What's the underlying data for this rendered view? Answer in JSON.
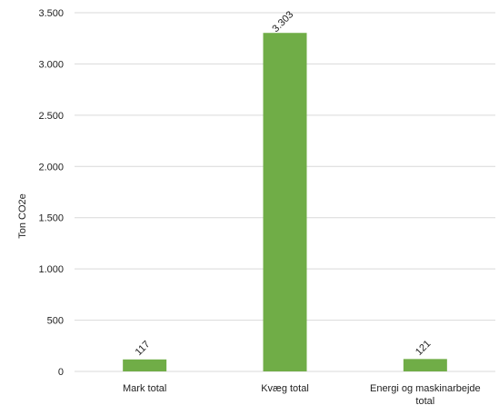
{
  "chart_data": {
    "type": "bar",
    "title": "",
    "xlabel": "",
    "ylabel": "Ton CO2e",
    "categories": [
      [
        "Mark total"
      ],
      [
        "Kvæg total"
      ],
      [
        "Energi og maskinarbejde",
        "total"
      ]
    ],
    "values": [
      117,
      3303,
      121
    ],
    "data_labels": [
      "117",
      "3.303",
      "121"
    ],
    "y_ticks": [
      0,
      500,
      1000,
      1500,
      2000,
      2500,
      3000,
      3500
    ],
    "y_tick_labels": [
      "0",
      "500",
      "1.000",
      "1.500",
      "2.000",
      "2.500",
      "3.000",
      "3.500"
    ],
    "ylim": [
      0,
      3500
    ],
    "grid": true,
    "legend": "none",
    "colors": {
      "bar": "#70ad47",
      "grid": "#d9d9d9",
      "text": "#222222"
    }
  }
}
